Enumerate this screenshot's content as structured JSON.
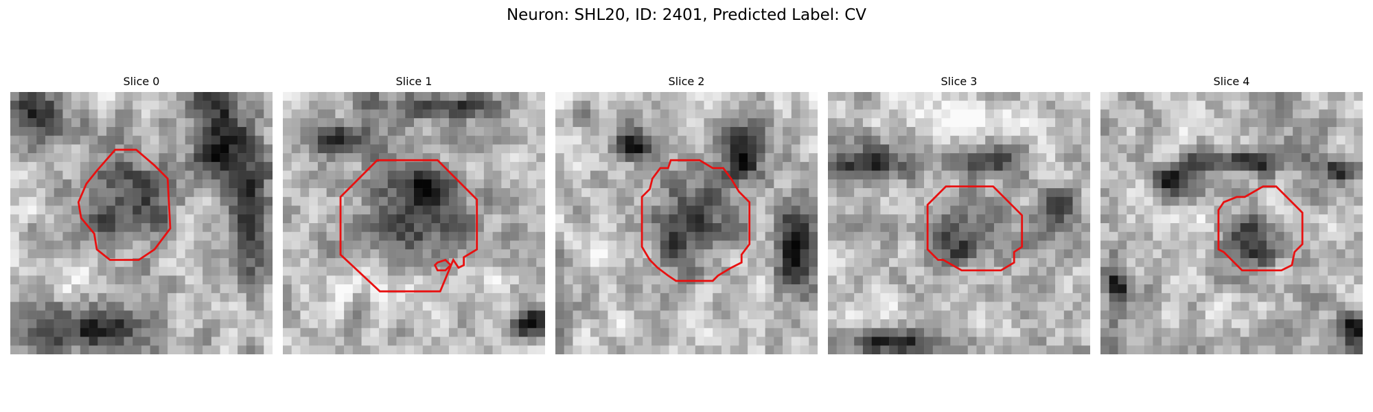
{
  "figure": {
    "title": "Neuron: SHL20, ID: 2401, Predicted Label: CV",
    "contour_color": "#e81010",
    "colormap": "grayscale",
    "panels": [
      {
        "title": "Slice 0",
        "seed": 11,
        "blob": [
          0.45,
          0.42,
          0.18,
          0.18
        ],
        "dark_blobs": [
          [
            0.3,
            0.9,
            0.22,
            0.1
          ],
          [
            0.8,
            0.15,
            0.12,
            0.25
          ],
          [
            0.92,
            0.5,
            0.08,
            0.2
          ],
          [
            0.1,
            0.1,
            0.12,
            0.1
          ]
        ],
        "light_blobs": [
          [
            0.72,
            0.45,
            0.1,
            0.1
          ],
          [
            0.2,
            0.7,
            0.15,
            0.08
          ]
        ],
        "contour": [
          [
            0.4,
            0.22
          ],
          [
            0.48,
            0.22
          ],
          [
            0.55,
            0.28
          ],
          [
            0.6,
            0.33
          ],
          [
            0.61,
            0.52
          ],
          [
            0.55,
            0.6
          ],
          [
            0.49,
            0.64
          ],
          [
            0.38,
            0.64
          ],
          [
            0.33,
            0.6
          ],
          [
            0.32,
            0.54
          ],
          [
            0.27,
            0.48
          ],
          [
            0.26,
            0.42
          ],
          [
            0.29,
            0.35
          ],
          [
            0.33,
            0.3
          ]
        ]
      },
      {
        "title": "Slice 1",
        "seed": 23,
        "blob": [
          0.45,
          0.5,
          0.22,
          0.2
        ],
        "dark_blobs": [
          [
            0.55,
            0.35,
            0.08,
            0.08
          ],
          [
            0.22,
            0.17,
            0.12,
            0.07
          ],
          [
            0.6,
            0.05,
            0.25,
            0.05
          ],
          [
            0.95,
            0.88,
            0.08,
            0.08
          ]
        ],
        "light_blobs": [
          [
            0.45,
            0.75,
            0.3,
            0.1
          ],
          [
            0.3,
            0.5,
            0.1,
            0.2
          ]
        ],
        "contour": [
          [
            0.36,
            0.26
          ],
          [
            0.59,
            0.26
          ],
          [
            0.74,
            0.41
          ],
          [
            0.74,
            0.6
          ],
          [
            0.69,
            0.63
          ],
          [
            0.69,
            0.66
          ],
          [
            0.67,
            0.67
          ],
          [
            0.65,
            0.64
          ],
          [
            0.6,
            0.76
          ],
          [
            0.37,
            0.76
          ],
          [
            0.22,
            0.62
          ],
          [
            0.22,
            0.4
          ]
        ],
        "extra_contour": [
          [
            0.59,
            0.65
          ],
          [
            0.62,
            0.64
          ],
          [
            0.64,
            0.66
          ],
          [
            0.62,
            0.68
          ],
          [
            0.59,
            0.68
          ],
          [
            0.58,
            0.66
          ]
        ]
      },
      {
        "title": "Slice 2",
        "seed": 37,
        "blob": [
          0.5,
          0.5,
          0.16,
          0.16
        ],
        "dark_blobs": [
          [
            0.72,
            0.25,
            0.08,
            0.12
          ],
          [
            0.92,
            0.6,
            0.08,
            0.2
          ],
          [
            0.3,
            0.2,
            0.08,
            0.06
          ]
        ],
        "light_blobs": [
          [
            0.2,
            0.6,
            0.1,
            0.1
          ]
        ],
        "contour": [
          [
            0.44,
            0.26
          ],
          [
            0.55,
            0.26
          ],
          [
            0.6,
            0.29
          ],
          [
            0.64,
            0.29
          ],
          [
            0.67,
            0.33
          ],
          [
            0.7,
            0.38
          ],
          [
            0.74,
            0.42
          ],
          [
            0.74,
            0.58
          ],
          [
            0.71,
            0.62
          ],
          [
            0.71,
            0.65
          ],
          [
            0.67,
            0.67
          ],
          [
            0.62,
            0.7
          ],
          [
            0.6,
            0.72
          ],
          [
            0.46,
            0.72
          ],
          [
            0.43,
            0.7
          ],
          [
            0.39,
            0.67
          ],
          [
            0.36,
            0.64
          ],
          [
            0.33,
            0.59
          ],
          [
            0.33,
            0.4
          ],
          [
            0.36,
            0.37
          ],
          [
            0.37,
            0.33
          ],
          [
            0.4,
            0.29
          ],
          [
            0.43,
            0.29
          ]
        ]
      },
      {
        "title": "Slice 3",
        "seed": 51,
        "blob": [
          0.5,
          0.56,
          0.14,
          0.12
        ],
        "dark_blobs": [
          [
            0.15,
            0.27,
            0.15,
            0.07
          ],
          [
            0.58,
            0.28,
            0.12,
            0.06
          ],
          [
            0.25,
            0.95,
            0.2,
            0.05
          ],
          [
            0.85,
            0.45,
            0.07,
            0.08
          ]
        ],
        "light_blobs": [
          [
            0.5,
            0.1,
            0.3,
            0.06
          ]
        ],
        "contour": [
          [
            0.45,
            0.36
          ],
          [
            0.63,
            0.36
          ],
          [
            0.74,
            0.47
          ],
          [
            0.74,
            0.59
          ],
          [
            0.71,
            0.61
          ],
          [
            0.71,
            0.65
          ],
          [
            0.66,
            0.68
          ],
          [
            0.51,
            0.68
          ],
          [
            0.44,
            0.64
          ],
          [
            0.42,
            0.64
          ],
          [
            0.38,
            0.6
          ],
          [
            0.38,
            0.43
          ]
        ]
      },
      {
        "title": "Slice 4",
        "seed": 67,
        "blob": [
          0.56,
          0.56,
          0.12,
          0.12
        ],
        "dark_blobs": [
          [
            0.27,
            0.34,
            0.07,
            0.06
          ],
          [
            0.06,
            0.75,
            0.05,
            0.12
          ],
          [
            0.55,
            0.27,
            0.2,
            0.04
          ],
          [
            0.9,
            0.3,
            0.06,
            0.05
          ],
          [
            0.96,
            0.9,
            0.05,
            0.08
          ]
        ],
        "light_blobs": [
          [
            0.4,
            0.55,
            0.08,
            0.1
          ]
        ],
        "contour": [
          [
            0.62,
            0.36
          ],
          [
            0.67,
            0.36
          ],
          [
            0.77,
            0.46
          ],
          [
            0.77,
            0.58
          ],
          [
            0.74,
            0.61
          ],
          [
            0.73,
            0.66
          ],
          [
            0.69,
            0.68
          ],
          [
            0.54,
            0.68
          ],
          [
            0.47,
            0.61
          ],
          [
            0.45,
            0.6
          ],
          [
            0.45,
            0.45
          ],
          [
            0.47,
            0.42
          ],
          [
            0.52,
            0.4
          ],
          [
            0.55,
            0.4
          ]
        ]
      }
    ]
  }
}
